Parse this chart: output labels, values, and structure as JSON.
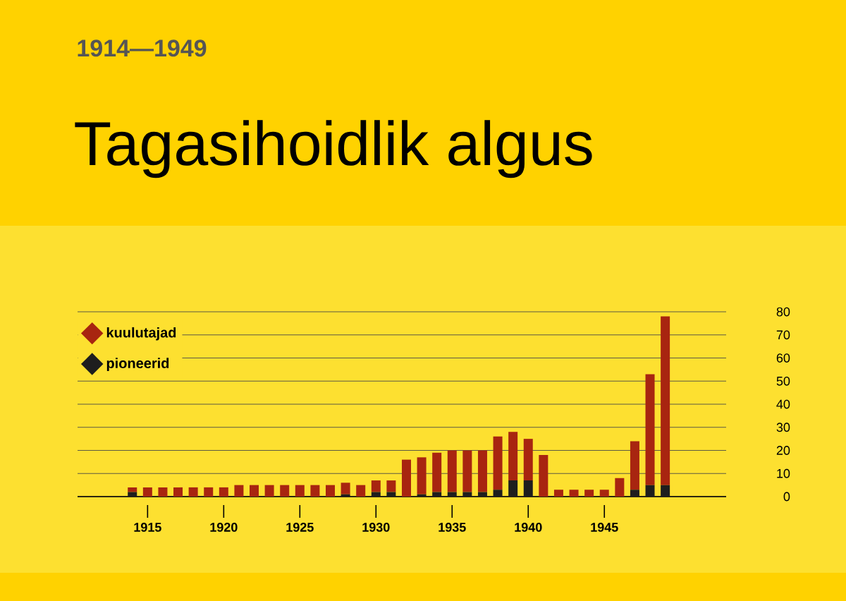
{
  "chart_data": {
    "type": "bar",
    "stacked": true,
    "subtitle": "1914—1949",
    "title": "Tagasihoidlik algus",
    "x": [
      1914,
      1915,
      1916,
      1917,
      1918,
      1919,
      1920,
      1921,
      1922,
      1923,
      1924,
      1925,
      1926,
      1927,
      1928,
      1929,
      1930,
      1931,
      1932,
      1933,
      1934,
      1935,
      1936,
      1937,
      1938,
      1939,
      1940,
      1941,
      1942,
      1943,
      1944,
      1945,
      1946,
      1947,
      1948,
      1949
    ],
    "series": [
      {
        "name": "pioneerid",
        "color": "#1e1e1e",
        "values": [
          2,
          0,
          0,
          0,
          0,
          0,
          0,
          0,
          0,
          0,
          0,
          0,
          0,
          0,
          1,
          0,
          2,
          2,
          0,
          1,
          2,
          2,
          2,
          2,
          3,
          7,
          7,
          0,
          0,
          0,
          0,
          0,
          0,
          3,
          5,
          5
        ]
      },
      {
        "name": "kuulutajad",
        "color": "#a82510",
        "values": [
          2,
          4,
          4,
          4,
          4,
          4,
          4,
          5,
          5,
          5,
          5,
          5,
          5,
          5,
          5,
          5,
          5,
          5,
          16,
          16,
          17,
          18,
          18,
          18,
          23,
          21,
          18,
          18,
          3,
          3,
          3,
          3,
          8,
          21,
          48,
          73
        ]
      }
    ],
    "xlim": [
      1910.4,
      1953
    ],
    "ylim": [
      0,
      80
    ],
    "xticks": [
      1915,
      1920,
      1925,
      1930,
      1935,
      1940,
      1945
    ],
    "yticks": [
      0,
      10,
      20,
      30,
      40,
      50,
      60,
      70,
      80
    ],
    "grid": "y",
    "legend": "top left"
  }
}
